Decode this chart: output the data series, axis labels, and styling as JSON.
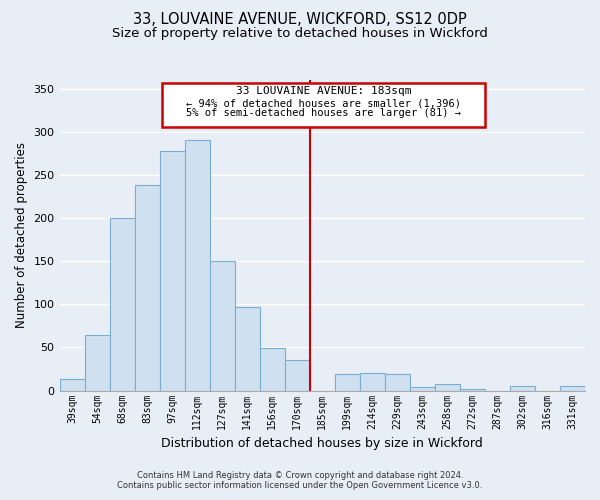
{
  "title": "33, LOUVAINE AVENUE, WICKFORD, SS12 0DP",
  "subtitle": "Size of property relative to detached houses in Wickford",
  "xlabel": "Distribution of detached houses by size in Wickford",
  "ylabel": "Number of detached properties",
  "bar_labels": [
    "39sqm",
    "54sqm",
    "68sqm",
    "83sqm",
    "97sqm",
    "112sqm",
    "127sqm",
    "141sqm",
    "156sqm",
    "170sqm",
    "185sqm",
    "199sqm",
    "214sqm",
    "229sqm",
    "243sqm",
    "258sqm",
    "272sqm",
    "287sqm",
    "302sqm",
    "316sqm",
    "331sqm"
  ],
  "bar_values": [
    13,
    65,
    200,
    238,
    278,
    290,
    150,
    97,
    49,
    36,
    0,
    19,
    20,
    19,
    4,
    8,
    2,
    0,
    5,
    0,
    5
  ],
  "bar_color": "#cfe0f0",
  "bar_edge_color": "#7aaed0",
  "vline_color": "#cc0000",
  "annotation_title": "33 LOUVAINE AVENUE: 183sqm",
  "annotation_line1": "← 94% of detached houses are smaller (1,396)",
  "annotation_line2": "5% of semi-detached houses are larger (81) →",
  "annotation_box_color": "#ffffff",
  "annotation_box_edge": "#cc0000",
  "ylim": [
    0,
    360
  ],
  "yticks": [
    0,
    50,
    100,
    150,
    200,
    250,
    300,
    350
  ],
  "footer1": "Contains HM Land Registry data © Crown copyright and database right 2024.",
  "footer2": "Contains public sector information licensed under the Open Government Licence v3.0.",
  "bg_color": "#e8eef5",
  "plot_bg_color": "#e8eef5",
  "grid_color": "#ffffff",
  "title_fontsize": 10.5,
  "subtitle_fontsize": 9.5,
  "axis_label_fontsize": 8.5,
  "tick_fontsize": 7,
  "footer_fontsize": 6
}
